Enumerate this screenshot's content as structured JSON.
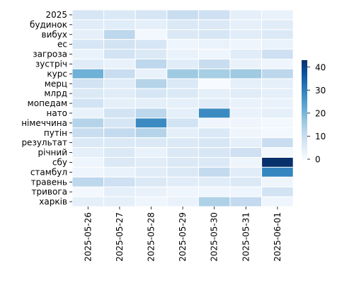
{
  "chart_data": {
    "type": "heatmap",
    "title": "",
    "xlabel": "",
    "ylabel": "",
    "x": [
      "2025-05-26",
      "2025-05-27",
      "2025-05-28",
      "2025-05-29",
      "2025-05-30",
      "2025-05-31",
      "2025-06-01"
    ],
    "y": [
      "2025",
      "будинок",
      "вибух",
      "ес",
      "загроза",
      "зустріч",
      "курс",
      "мерц",
      "млрд",
      "мопедам",
      "нато",
      "німеччина",
      "путін",
      "результат",
      "річний",
      "сбу",
      "стамбул",
      "травень",
      "тривога",
      "харків"
    ],
    "values": [
      [
        7,
        6,
        7,
        10,
        9,
        4,
        3
      ],
      [
        5,
        5,
        4,
        6,
        6,
        4,
        5
      ],
      [
        4,
        12,
        1,
        6,
        7,
        5,
        6
      ],
      [
        7,
        8,
        7,
        2,
        3,
        2,
        3
      ],
      [
        3,
        8,
        6,
        3,
        2,
        5,
        9
      ],
      [
        5,
        3,
        12,
        5,
        10,
        3,
        2
      ],
      [
        21,
        10,
        3,
        16,
        15,
        16,
        12
      ],
      [
        8,
        5,
        13,
        6,
        0,
        4,
        4
      ],
      [
        6,
        5,
        7,
        6,
        4,
        5,
        4
      ],
      [
        8,
        4,
        4,
        4,
        5,
        3,
        3
      ],
      [
        3,
        8,
        12,
        4,
        28,
        3,
        4
      ],
      [
        13,
        7,
        28,
        8,
        2,
        2,
        1
      ],
      [
        10,
        11,
        13,
        4,
        6,
        2,
        1
      ],
      [
        6,
        6,
        6,
        6,
        7,
        4,
        10
      ],
      [
        4,
        6,
        3,
        6,
        7,
        9,
        1
      ],
      [
        2,
        6,
        5,
        6,
        6,
        2,
        43
      ],
      [
        2,
        3,
        5,
        6,
        11,
        5,
        29
      ],
      [
        12,
        9,
        6,
        5,
        5,
        6,
        2
      ],
      [
        1,
        4,
        3,
        2,
        2,
        2,
        8
      ],
      [
        4,
        4,
        2,
        3,
        14,
        11,
        2
      ]
    ],
    "colorbar": {
      "min": 0,
      "max": 43,
      "ticks": [
        0,
        10,
        20,
        30,
        40
      ]
    },
    "colormap": [
      "#f7fbff",
      "#deebf7",
      "#c6dbef",
      "#9ecae1",
      "#6baed6",
      "#4292c6",
      "#2171b5",
      "#08519c",
      "#08306b"
    ],
    "grid": true,
    "legend": "right"
  }
}
